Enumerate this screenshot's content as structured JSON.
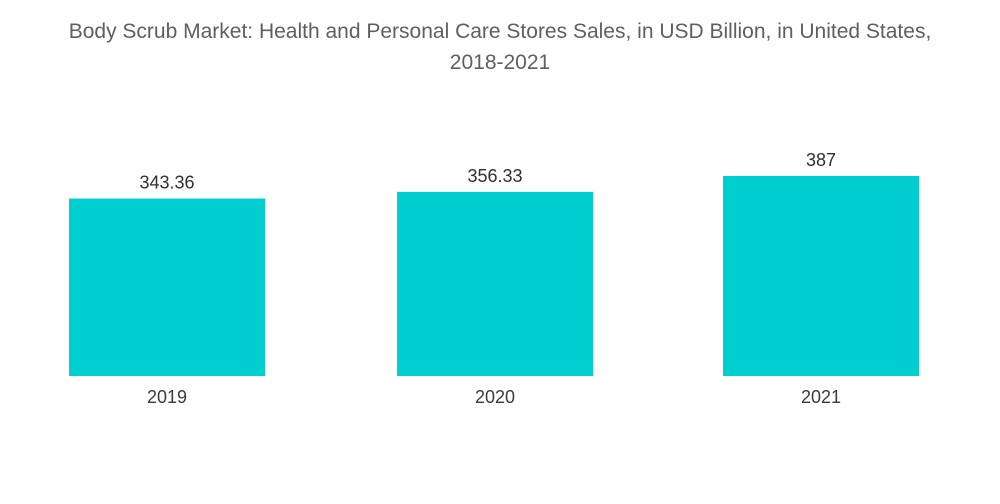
{
  "chart_data": {
    "type": "bar",
    "title_line1": "Body Scrub Market: Health and Personal Care Stores Sales, in USD Billion, in United States,",
    "title_line2": "2018-2021",
    "categories": [
      "2019",
      "2020",
      "2021"
    ],
    "values": [
      343.36,
      356.33,
      387
    ],
    "value_labels": [
      "343.36",
      "356.33",
      "387"
    ],
    "xlabel": "",
    "ylabel": "",
    "ylim": [
      0,
      387
    ],
    "grid": false,
    "legend": "none",
    "bar_color": "#00CED1"
  }
}
